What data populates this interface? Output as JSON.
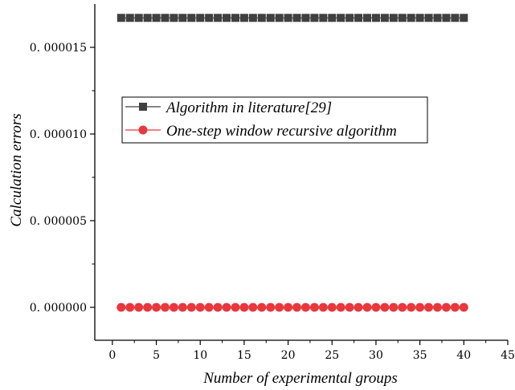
{
  "chart_data": {
    "type": "line",
    "xlabel": "Number of experimental groups",
    "ylabel": "Calculation errors",
    "xlim": [
      -2,
      45
    ],
    "ylim": [
      -1.9e-06,
      1.75e-05
    ],
    "xticks": [
      0,
      5,
      10,
      15,
      20,
      25,
      30,
      35,
      40,
      45
    ],
    "xtick_labels": [
      "0",
      "5",
      "10",
      "15",
      "20",
      "25",
      "30",
      "35",
      "40",
      "45"
    ],
    "yticks": [
      0,
      5e-06,
      1e-05,
      1.5e-05
    ],
    "ytick_labels": [
      "0. 000000",
      "0. 000005",
      "0. 000010",
      "0. 000015"
    ],
    "legend_position": "center-left",
    "x": [
      1,
      2,
      3,
      4,
      5,
      6,
      7,
      8,
      9,
      10,
      11,
      12,
      13,
      14,
      15,
      16,
      17,
      18,
      19,
      20,
      21,
      22,
      23,
      24,
      25,
      26,
      27,
      28,
      29,
      30,
      31,
      32,
      33,
      34,
      35,
      36,
      37,
      38,
      39,
      40
    ],
    "series": [
      {
        "name": "Algorithm in literature[29]",
        "color": "#404040",
        "marker": "square",
        "values": [
          1.67e-05,
          1.67e-05,
          1.67e-05,
          1.67e-05,
          1.67e-05,
          1.67e-05,
          1.67e-05,
          1.67e-05,
          1.67e-05,
          1.67e-05,
          1.67e-05,
          1.67e-05,
          1.67e-05,
          1.67e-05,
          1.67e-05,
          1.67e-05,
          1.67e-05,
          1.67e-05,
          1.67e-05,
          1.67e-05,
          1.67e-05,
          1.67e-05,
          1.67e-05,
          1.67e-05,
          1.67e-05,
          1.67e-05,
          1.67e-05,
          1.67e-05,
          1.67e-05,
          1.67e-05,
          1.67e-05,
          1.67e-05,
          1.67e-05,
          1.67e-05,
          1.67e-05,
          1.67e-05,
          1.67e-05,
          1.67e-05,
          1.67e-05,
          1.67e-05
        ]
      },
      {
        "name": "One-step window recursive algorithm",
        "color": "#e8383d",
        "marker": "circle",
        "values": [
          0,
          0,
          0,
          0,
          0,
          0,
          0,
          0,
          0,
          0,
          0,
          0,
          0,
          0,
          0,
          0,
          0,
          0,
          0,
          0,
          0,
          0,
          0,
          0,
          0,
          0,
          0,
          0,
          0,
          0,
          0,
          0,
          0,
          0,
          0,
          0,
          0,
          0,
          0,
          0
        ]
      }
    ]
  }
}
